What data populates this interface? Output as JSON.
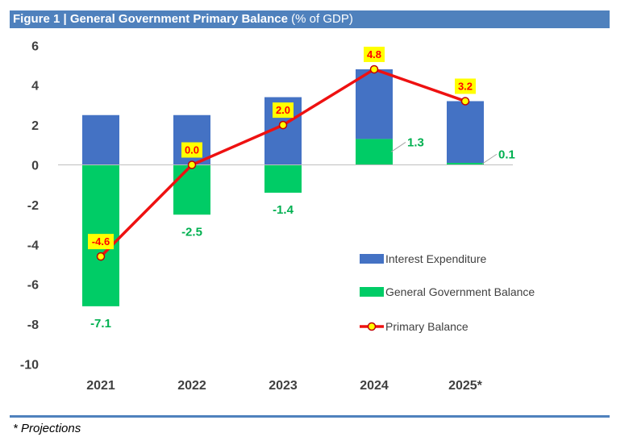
{
  "header": {
    "title_bold": "Figure 1 | General Government Primary Balance",
    "title_rest": "(% of GDP)"
  },
  "footnote": "* Projections",
  "chart_data": {
    "type": "bar",
    "title": "Figure 1 | General Government Primary Balance (% of GDP)",
    "categories": [
      "2021",
      "2022",
      "2023",
      "2024",
      "2025*"
    ],
    "ylim": [
      -10,
      6
    ],
    "yticks": [
      6,
      4,
      2,
      0,
      -2,
      -4,
      -6,
      -8,
      -10
    ],
    "grid": false,
    "legend_position": "right",
    "series": [
      {
        "name": "Interest Expenditure",
        "kind": "bar-stacked",
        "color": "#4472c4",
        "values": [
          2.5,
          2.5,
          3.4,
          3.5,
          3.1
        ]
      },
      {
        "name": "General Government Balance",
        "kind": "bar-stacked",
        "color": "#00cc66",
        "values": [
          -7.1,
          -2.5,
          -1.4,
          1.3,
          0.1
        ],
        "labels": [
          "-7.1",
          "-2.5",
          "-1.4",
          "1.3",
          "0.1"
        ]
      },
      {
        "name": "Primary Balance",
        "kind": "line",
        "color": "#ee1111",
        "values": [
          -4.6,
          0.0,
          2.0,
          4.8,
          3.2
        ],
        "labels": [
          "-4.6",
          "0.0",
          "2.0",
          "4.8",
          "3.2"
        ]
      }
    ]
  }
}
